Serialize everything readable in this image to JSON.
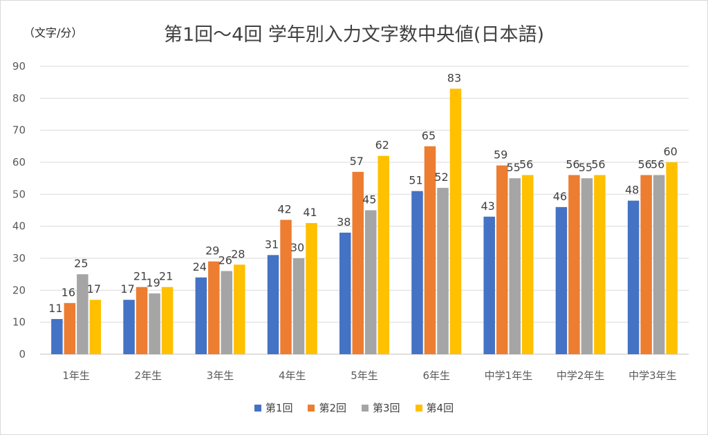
{
  "chart_data": {
    "type": "bar",
    "title": "第1回～4回 学年別入力文字数中央値(日本語)",
    "unit_label": "（文字/分）",
    "categories": [
      "1年生",
      "2年生",
      "3年生",
      "4年生",
      "5年生",
      "6年生",
      "中学1年生",
      "中学2年生",
      "中学3年生"
    ],
    "series": [
      {
        "name": "第1回",
        "color": "#4472C4",
        "values": [
          11,
          17,
          24,
          31,
          38,
          51,
          43,
          46,
          48
        ]
      },
      {
        "name": "第2回",
        "color": "#ED7D31",
        "values": [
          16,
          21,
          29,
          42,
          57,
          65,
          59,
          56,
          56
        ]
      },
      {
        "name": "第3回",
        "color": "#A5A5A5",
        "values": [
          25,
          19,
          26,
          30,
          45,
          52,
          55,
          55,
          56
        ]
      },
      {
        "name": "第4回",
        "color": "#FFC000",
        "values": [
          17,
          21,
          28,
          41,
          62,
          83,
          56,
          56,
          60
        ]
      }
    ],
    "ylim": [
      0,
      90
    ],
    "yticks": [
      0,
      10,
      20,
      30,
      40,
      50,
      60,
      70,
      80,
      90
    ],
    "grid": true,
    "legend_position": "bottom",
    "data_labels": true
  }
}
